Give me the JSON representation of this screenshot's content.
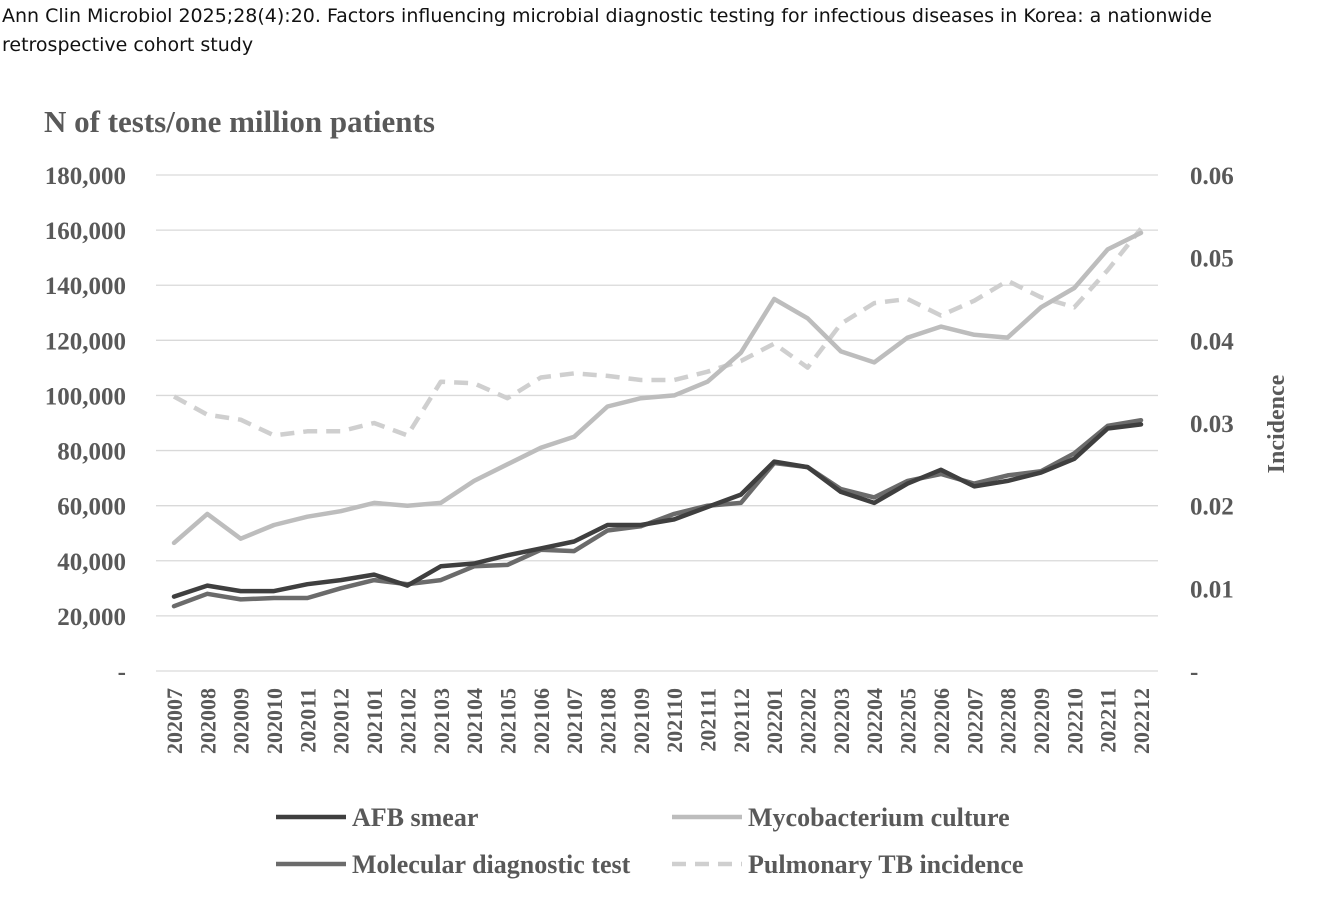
{
  "caption": "Ann Clin Microbiol 2025;28(4):20. Factors influencing microbial diagnostic testing for infectious diseases in Korea: a nationwide retrospective cohort study",
  "colors": {
    "afb": "#3f3f3f",
    "molecular": "#6b6b6b",
    "culture": "#bdbdbd",
    "incidence": "#cfcfcf",
    "grid": "#d9d9d9",
    "text": "#595959"
  },
  "chart_data": {
    "type": "line",
    "title": "",
    "ylabel": "N of tests/one million patients",
    "y2label": "Incidence",
    "xlabel": "",
    "ylim": [
      0,
      180000
    ],
    "y2lim": [
      0,
      0.06
    ],
    "grid": true,
    "legend_position": "bottom",
    "y_ticks": [
      "-",
      "20,000",
      "40,000",
      "60,000",
      "80,000",
      "100,000",
      "120,000",
      "140,000",
      "160,000",
      "180,000"
    ],
    "y2_ticks": [
      "-",
      "0.01",
      "0.02",
      "0.03",
      "0.04",
      "0.05",
      "0.06"
    ],
    "categories": [
      "202007",
      "202008",
      "202009",
      "202010",
      "202011",
      "202012",
      "202101",
      "202102",
      "202103",
      "202104",
      "202105",
      "202106",
      "202107",
      "202108",
      "202109",
      "202110",
      "202111",
      "202112",
      "202201",
      "202202",
      "202203",
      "202204",
      "202205",
      "202206",
      "202207",
      "202208",
      "202209",
      "202210",
      "202211",
      "202212"
    ],
    "series": [
      {
        "name": "AFB smear",
        "axis": "left",
        "style": "solid",
        "color": "#3f3f3f",
        "values": [
          27000,
          31000,
          29000,
          29000,
          31500,
          33000,
          35000,
          31000,
          38000,
          39000,
          42000,
          44500,
          47000,
          53000,
          53000,
          55000,
          59500,
          64000,
          76000,
          74000,
          65000,
          61000,
          68000,
          73000,
          67000,
          69000,
          72000,
          77000,
          88000,
          89500
        ]
      },
      {
        "name": "Mycobacterium culture",
        "axis": "left",
        "style": "solid",
        "color": "#bdbdbd",
        "values": [
          46500,
          57000,
          48000,
          53000,
          56000,
          58000,
          61000,
          60000,
          61000,
          69000,
          75000,
          81000,
          85000,
          96000,
          99000,
          100000,
          105000,
          115500,
          135000,
          128000,
          116000,
          112000,
          121000,
          125000,
          122000,
          121000,
          132000,
          139000,
          153000,
          159000
        ]
      },
      {
        "name": "Molecular diagnostic test",
        "axis": "left",
        "style": "solid",
        "color": "#6b6b6b",
        "values": [
          23500,
          28000,
          26000,
          26500,
          26500,
          30000,
          33000,
          31500,
          33000,
          38000,
          38500,
          44000,
          43500,
          51000,
          52500,
          57000,
          60000,
          61000,
          75500,
          74000,
          66000,
          63000,
          69000,
          71500,
          68000,
          71000,
          72500,
          79000,
          89000,
          91000
        ]
      },
      {
        "name": "Pulmonary TB incidence",
        "axis": "right",
        "style": "dashed",
        "color": "#cfcfcf",
        "values": [
          0.0332,
          0.031,
          0.0304,
          0.0285,
          0.029,
          0.029,
          0.03,
          0.0285,
          0.035,
          0.0348,
          0.033,
          0.0355,
          0.036,
          0.0357,
          0.0352,
          0.0352,
          0.0362,
          0.0375,
          0.0396,
          0.0367,
          0.042,
          0.0445,
          0.045,
          0.043,
          0.0448,
          0.0472,
          0.0452,
          0.044,
          0.0485,
          0.0535
        ]
      }
    ]
  }
}
